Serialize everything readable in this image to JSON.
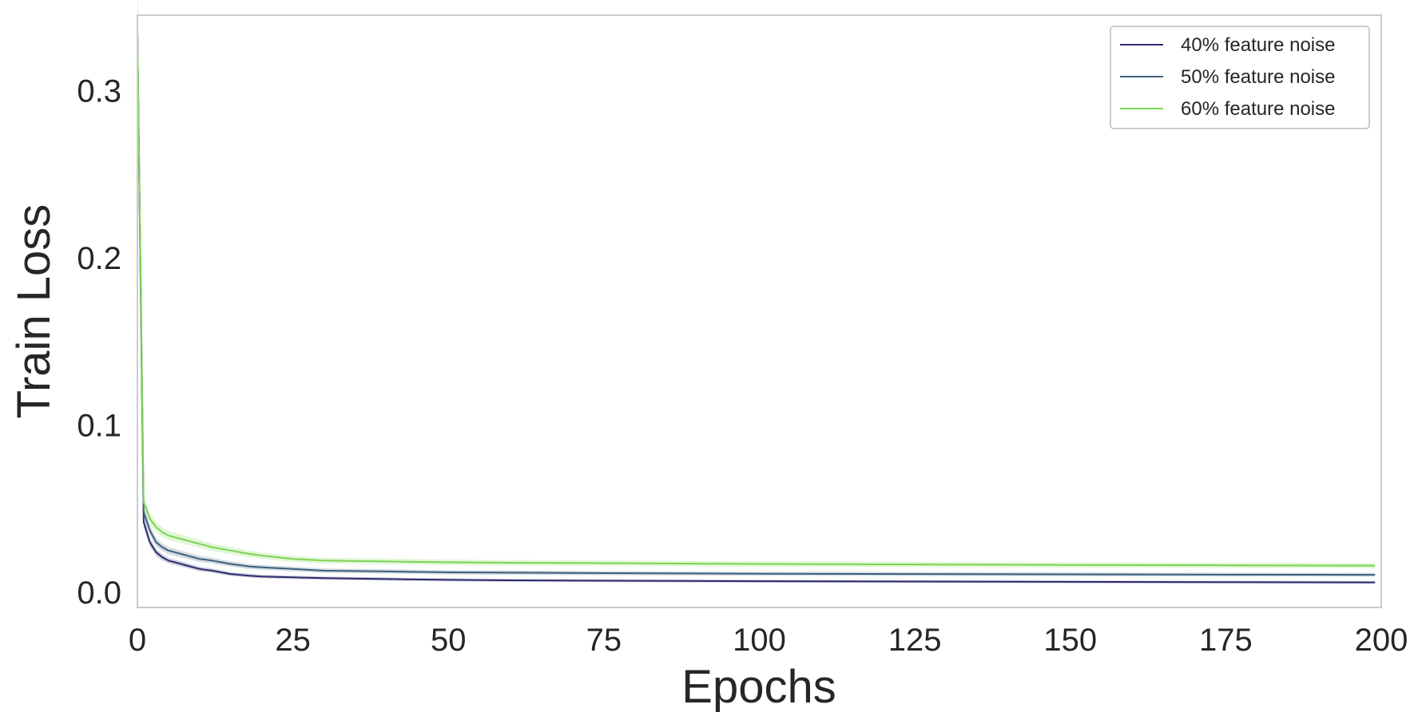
{
  "chart_data": {
    "type": "line",
    "title": "",
    "xlabel": "Epochs",
    "ylabel": "Train Loss",
    "xlim": [
      0,
      200
    ],
    "ylim": [
      -0.009,
      0.345
    ],
    "xticks": [
      0,
      25,
      50,
      75,
      100,
      125,
      150,
      175,
      200
    ],
    "xtick_labels": [
      "0",
      "25",
      "50",
      "75",
      "100",
      "125",
      "150",
      "175",
      "200"
    ],
    "yticks": [
      0.0,
      0.1,
      0.2,
      0.3
    ],
    "ytick_labels": [
      "0.0",
      "0.1",
      "0.2",
      "0.3"
    ],
    "grid": false,
    "legend_position": "top-right",
    "x": [
      0,
      1,
      2,
      3,
      4,
      5,
      6,
      8,
      10,
      12,
      15,
      18,
      20,
      25,
      30,
      40,
      50,
      60,
      75,
      100,
      125,
      150,
      175,
      199
    ],
    "series": [
      {
        "name": "40% feature noise",
        "color": "#2c2c6e",
        "values": [
          0.335,
          0.042,
          0.03,
          0.024,
          0.021,
          0.019,
          0.018,
          0.016,
          0.014,
          0.013,
          0.011,
          0.01,
          0.0095,
          0.009,
          0.0085,
          0.008,
          0.0075,
          0.0072,
          0.007,
          0.0067,
          0.0065,
          0.0063,
          0.0061,
          0.006
        ]
      },
      {
        "name": "50% feature noise",
        "color": "#3d5f7d",
        "values": [
          0.335,
          0.048,
          0.037,
          0.03,
          0.027,
          0.025,
          0.024,
          0.022,
          0.02,
          0.019,
          0.017,
          0.0155,
          0.015,
          0.014,
          0.013,
          0.0125,
          0.012,
          0.0118,
          0.0115,
          0.0112,
          0.011,
          0.0108,
          0.0106,
          0.0105
        ]
      },
      {
        "name": "60% feature noise",
        "color": "#7cd451",
        "values": [
          0.335,
          0.054,
          0.044,
          0.039,
          0.036,
          0.034,
          0.033,
          0.031,
          0.029,
          0.027,
          0.025,
          0.023,
          0.022,
          0.02,
          0.019,
          0.0185,
          0.018,
          0.0177,
          0.0175,
          0.017,
          0.0167,
          0.0164,
          0.0162,
          0.016
        ]
      }
    ]
  }
}
